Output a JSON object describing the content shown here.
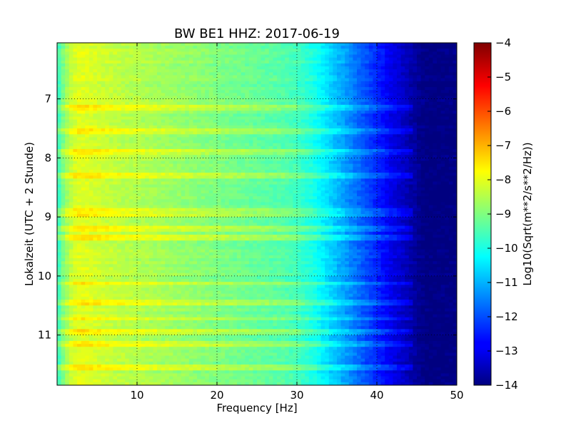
{
  "chart_data": {
    "type": "heatmap",
    "title": "BW BE1 HHZ: 2017-06-19",
    "xlabel": "Frequency [Hz]",
    "ylabel": "Lokalzeit (UTC + 2 Stunde)",
    "xlim": [
      0,
      50
    ],
    "ylim": [
      6.05,
      11.85
    ],
    "y_inverted": true,
    "x_ticks": [
      10,
      20,
      30,
      40,
      50
    ],
    "y_ticks": [
      7,
      8,
      9,
      10,
      11
    ],
    "grid": true,
    "colormap": "jet",
    "colorbar": {
      "label": "Log10(Sqrt(m**2/s**2/Hz))",
      "range": [
        -14,
        -4
      ],
      "ticks": [
        -4,
        -5,
        -6,
        -7,
        -8,
        -9,
        -10,
        -11,
        -12,
        -13,
        -14
      ]
    },
    "spectrum_profile": {
      "frequency_hz": [
        0,
        1,
        2,
        3,
        5,
        8,
        12,
        16,
        20,
        24,
        28,
        30,
        32,
        34,
        36,
        38,
        40,
        42,
        44,
        46,
        50
      ],
      "log_amplitude": [
        -9.8,
        -8.8,
        -8.2,
        -8.0,
        -8.2,
        -8.4,
        -8.6,
        -8.8,
        -9.0,
        -9.2,
        -9.4,
        -9.6,
        -10.0,
        -10.6,
        -11.2,
        -11.8,
        -12.4,
        -13.0,
        -13.5,
        -14.0,
        -14.0
      ]
    },
    "bright_lines_hour": [
      7.15,
      7.55,
      7.9,
      8.3,
      8.88,
      8.95,
      9.2,
      9.35,
      10.13,
      10.45,
      10.72,
      10.95,
      11.15,
      11.55
    ]
  },
  "colors": {
    "jet_dark_blue": "#00007f",
    "jet_blue": "#0000ff",
    "jet_cyan": "#00ffff",
    "jet_yellow": "#ffff00",
    "jet_red": "#ff0000",
    "jet_dark_red": "#7f0000"
  }
}
